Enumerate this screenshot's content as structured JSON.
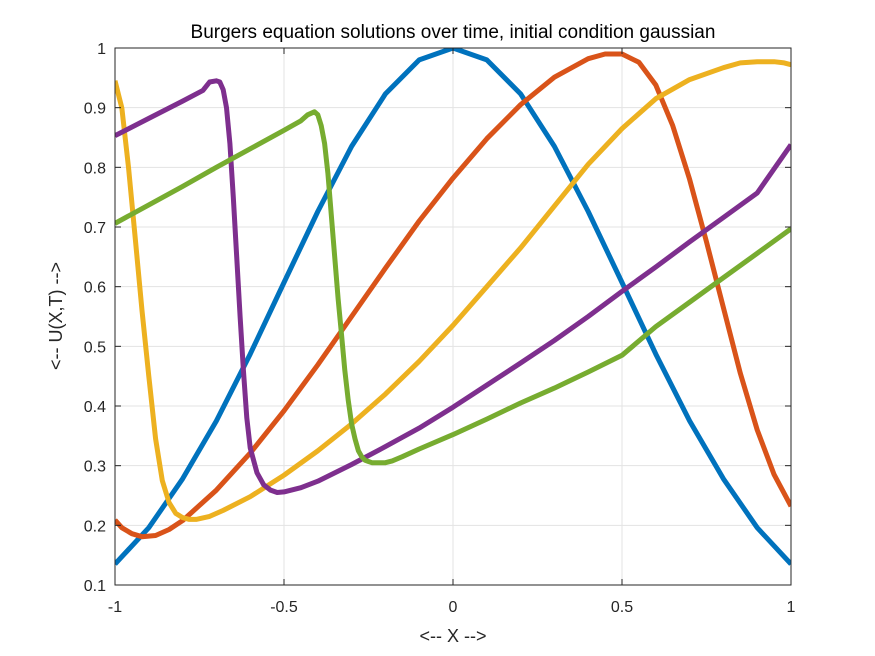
{
  "chart_data": {
    "type": "line",
    "title": "Burgers equation solutions over time, initial condition gaussian",
    "xlabel": "<-- X -->",
    "ylabel": "<-- U(X,T) -->",
    "xlim": [
      -1,
      1
    ],
    "ylim": [
      0.1,
      1
    ],
    "xticks": [
      -1,
      -0.5,
      0,
      0.5,
      1
    ],
    "xtick_labels": [
      "-1",
      "-0.5",
      "0",
      "0.5",
      "1"
    ],
    "yticks": [
      0.1,
      0.2,
      0.3,
      0.4,
      0.5,
      0.6,
      0.7,
      0.8,
      0.9,
      1
    ],
    "ytick_labels": [
      "0.1",
      "0.2",
      "0.3",
      "0.4",
      "0.5",
      "0.6",
      "0.7",
      "0.8",
      "0.9",
      "1"
    ],
    "grid": true,
    "legend": "none",
    "series": [
      {
        "color": "#0072BD",
        "x": [
          -1,
          -0.9,
          -0.8,
          -0.7,
          -0.6,
          -0.5,
          -0.4,
          -0.3,
          -0.2,
          -0.1,
          0,
          0.1,
          0.2,
          0.3,
          0.4,
          0.5,
          0.6,
          0.7,
          0.8,
          0.9,
          1
        ],
        "y": [
          0.135,
          0.196,
          0.278,
          0.375,
          0.487,
          0.607,
          0.726,
          0.835,
          0.923,
          0.98,
          1.0,
          0.98,
          0.923,
          0.835,
          0.726,
          0.607,
          0.487,
          0.375,
          0.278,
          0.196,
          0.135
        ]
      },
      {
        "color": "#D95319",
        "x": [
          -1,
          -0.98,
          -0.95,
          -0.92,
          -0.88,
          -0.84,
          -0.8,
          -0.7,
          -0.6,
          -0.5,
          -0.4,
          -0.3,
          -0.2,
          -0.1,
          0,
          0.1,
          0.2,
          0.3,
          0.4,
          0.45,
          0.5,
          0.55,
          0.6,
          0.65,
          0.7,
          0.75,
          0.8,
          0.85,
          0.9,
          0.95,
          1
        ],
        "y": [
          0.209,
          0.196,
          0.186,
          0.181,
          0.183,
          0.193,
          0.208,
          0.259,
          0.321,
          0.392,
          0.469,
          0.55,
          0.631,
          0.71,
          0.782,
          0.848,
          0.905,
          0.951,
          0.982,
          0.99,
          0.99,
          0.976,
          0.938,
          0.87,
          0.78,
          0.675,
          0.565,
          0.455,
          0.36,
          0.285,
          0.232
        ]
      },
      {
        "color": "#EDB120",
        "x": [
          -1,
          -0.98,
          -0.96,
          -0.94,
          -0.92,
          -0.9,
          -0.88,
          -0.86,
          -0.84,
          -0.82,
          -0.8,
          -0.78,
          -0.76,
          -0.72,
          -0.68,
          -0.6,
          -0.5,
          -0.4,
          -0.3,
          -0.2,
          -0.1,
          0,
          0.1,
          0.2,
          0.3,
          0.4,
          0.5,
          0.6,
          0.7,
          0.8,
          0.85,
          0.9,
          0.95,
          0.98,
          1
        ],
        "y": [
          0.945,
          0.9,
          0.8,
          0.68,
          0.56,
          0.45,
          0.345,
          0.275,
          0.238,
          0.22,
          0.213,
          0.21,
          0.21,
          0.215,
          0.225,
          0.248,
          0.284,
          0.325,
          0.37,
          0.42,
          0.475,
          0.535,
          0.6,
          0.665,
          0.735,
          0.805,
          0.865,
          0.915,
          0.947,
          0.967,
          0.975,
          0.977,
          0.977,
          0.975,
          0.972
        ]
      },
      {
        "color": "#7E2F8E",
        "x": [
          -1,
          -0.9,
          -0.8,
          -0.74,
          -0.72,
          -0.7,
          -0.69,
          -0.68,
          -0.67,
          -0.66,
          -0.65,
          -0.64,
          -0.63,
          -0.62,
          -0.61,
          -0.6,
          -0.58,
          -0.56,
          -0.54,
          -0.52,
          -0.5,
          -0.45,
          -0.4,
          -0.3,
          -0.2,
          -0.1,
          0,
          0.1,
          0.2,
          0.3,
          0.4,
          0.5,
          0.6,
          0.7,
          0.8,
          0.9,
          1
        ],
        "y": [
          0.853,
          0.882,
          0.911,
          0.929,
          0.943,
          0.945,
          0.943,
          0.93,
          0.9,
          0.84,
          0.75,
          0.65,
          0.55,
          0.46,
          0.38,
          0.33,
          0.288,
          0.268,
          0.259,
          0.255,
          0.256,
          0.263,
          0.274,
          0.302,
          0.332,
          0.363,
          0.398,
          0.435,
          0.472,
          0.51,
          0.55,
          0.592,
          0.633,
          0.675,
          0.716,
          0.757,
          0.838
        ]
      },
      {
        "color": "#77AC30",
        "x": [
          -1,
          -0.9,
          -0.8,
          -0.7,
          -0.6,
          -0.5,
          -0.45,
          -0.43,
          -0.41,
          -0.4,
          -0.39,
          -0.38,
          -0.37,
          -0.36,
          -0.35,
          -0.34,
          -0.33,
          -0.32,
          -0.31,
          -0.3,
          -0.29,
          -0.28,
          -0.27,
          -0.26,
          -0.25,
          -0.24,
          -0.22,
          -0.2,
          -0.18,
          -0.15,
          -0.1,
          0,
          0.1,
          0.2,
          0.3,
          0.4,
          0.5,
          0.6,
          0.7,
          0.8,
          0.9,
          1
        ],
        "y": [
          0.706,
          0.737,
          0.768,
          0.8,
          0.831,
          0.862,
          0.878,
          0.888,
          0.893,
          0.888,
          0.87,
          0.84,
          0.79,
          0.72,
          0.65,
          0.58,
          0.52,
          0.46,
          0.41,
          0.37,
          0.345,
          0.325,
          0.315,
          0.309,
          0.307,
          0.305,
          0.305,
          0.305,
          0.308,
          0.315,
          0.328,
          0.352,
          0.378,
          0.405,
          0.43,
          0.457,
          0.485,
          0.533,
          0.574,
          0.615,
          0.656,
          0.697
        ]
      }
    ]
  }
}
